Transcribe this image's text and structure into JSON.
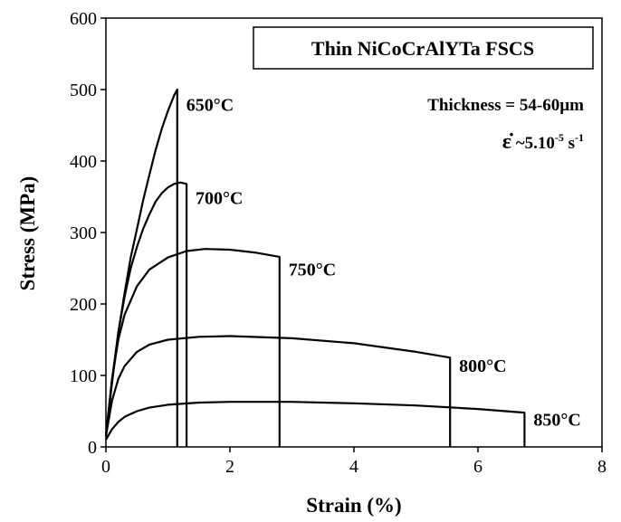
{
  "chart_data": {
    "type": "line",
    "title": "Thin NiCoCrAlYTa FSCS",
    "annotations": {
      "thickness": "Thickness = 54-60µm",
      "rate_symbol": "ε̇",
      "rate_prefix": " ~5.10",
      "rate_exp1": "-5",
      "rate_unit": " s",
      "rate_exp2": "-1"
    },
    "xlabel": "Strain (%)",
    "ylabel": "Stress (MPa)",
    "xlim": [
      0,
      8
    ],
    "ylim": [
      0,
      600
    ],
    "xticks": [
      0,
      2,
      4,
      6,
      8
    ],
    "yticks": [
      0,
      100,
      200,
      300,
      400,
      500,
      600
    ],
    "grid": false,
    "series": [
      {
        "name": "650°C",
        "label_at": [
          1.15,
          470
        ],
        "x": [
          0,
          0.1,
          0.2,
          0.3,
          0.4,
          0.5,
          0.6,
          0.7,
          0.8,
          0.9,
          1.0,
          1.1,
          1.15,
          1.15
        ],
        "y": [
          15,
          90,
          160,
          215,
          265,
          305,
          345,
          380,
          415,
          445,
          470,
          492,
          500,
          0
        ]
      },
      {
        "name": "700°C",
        "label_at": [
          1.3,
          340
        ],
        "x": [
          0,
          0.1,
          0.2,
          0.3,
          0.4,
          0.5,
          0.6,
          0.7,
          0.8,
          0.9,
          1.0,
          1.1,
          1.2,
          1.3,
          1.3
        ],
        "y": [
          15,
          95,
          160,
          210,
          250,
          280,
          305,
          325,
          343,
          355,
          363,
          368,
          370,
          368,
          0
        ]
      },
      {
        "name": "750°C",
        "label_at": [
          2.8,
          240
        ],
        "x": [
          0,
          0.1,
          0.2,
          0.3,
          0.5,
          0.7,
          1.0,
          1.3,
          1.6,
          2.0,
          2.4,
          2.8,
          2.8
        ],
        "y": [
          15,
          95,
          150,
          185,
          225,
          248,
          265,
          274,
          277,
          276,
          272,
          266,
          0
        ]
      },
      {
        "name": "800°C",
        "label_at": [
          5.55,
          105
        ],
        "x": [
          0,
          0.1,
          0.2,
          0.3,
          0.5,
          0.7,
          1.0,
          1.5,
          2.0,
          3.0,
          4.0,
          5.0,
          5.55,
          5.55
        ],
        "y": [
          15,
          65,
          95,
          113,
          133,
          143,
          150,
          154,
          155,
          152,
          145,
          133,
          125,
          0
        ]
      },
      {
        "name": "850°C",
        "label_at": [
          6.75,
          30
        ],
        "x": [
          0,
          0.1,
          0.2,
          0.3,
          0.5,
          0.7,
          1.0,
          1.5,
          2.0,
          3.0,
          4.0,
          5.0,
          6.0,
          6.75,
          6.75
        ],
        "y": [
          10,
          25,
          35,
          42,
          50,
          55,
          59,
          62,
          63,
          63,
          61,
          58,
          53,
          48,
          0
        ]
      }
    ]
  }
}
